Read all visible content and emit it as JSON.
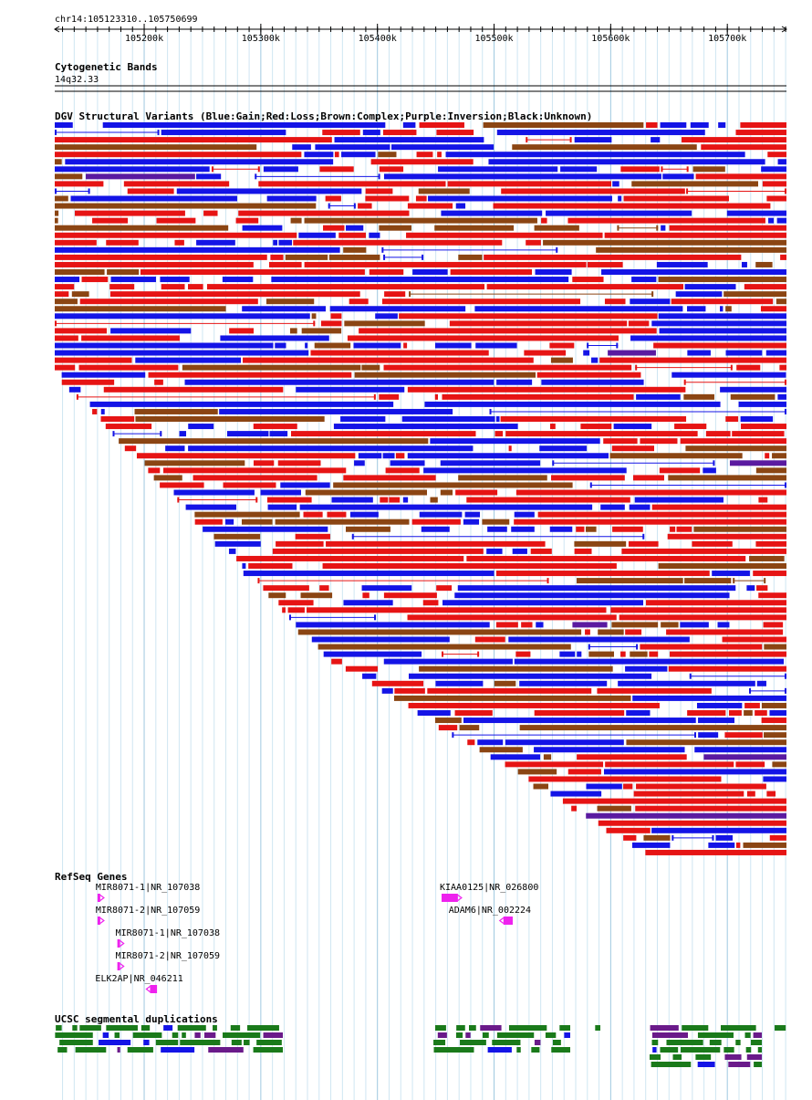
{
  "region": "chr14:105123310..105750699",
  "coords": {
    "start": 105123310,
    "end": 105750699
  },
  "ruler": {
    "ticks": [
      {
        "pos": 105200000,
        "label": "105200k"
      },
      {
        "pos": 105300000,
        "label": "105300k"
      },
      {
        "pos": 105400000,
        "label": "105400k"
      },
      {
        "pos": 105500000,
        "label": "105500k"
      },
      {
        "pos": 105600000,
        "label": "105600k"
      },
      {
        "pos": 105700000,
        "label": "105700k"
      }
    ]
  },
  "cytoband": {
    "title": "Cytogenetic Bands",
    "band": "14q32.33"
  },
  "dgv": {
    "title": "DGV Structural Variants (Blue:Gain;Red:Loss;Brown:Complex;Purple:Inversion;Black:Unknown)",
    "colors": {
      "gain": "#1414e6",
      "loss": "#e61414",
      "complex": "#8b4513",
      "inversion": "#5a1aa0",
      "unknown": "#000000"
    }
  },
  "refseq": {
    "title": "RefSeq Genes",
    "genes": [
      {
        "label": "MIR8071-1|NR_107038",
        "start": 105160000,
        "end": 105161000,
        "strand": "+"
      },
      {
        "label": "MIR8071-2|NR_107059",
        "start": 105160000,
        "end": 105161000,
        "strand": "+"
      },
      {
        "label": "MIR8071-1|NR_107038",
        "start": 105177000,
        "end": 105178000,
        "strand": "+"
      },
      {
        "label": "MIR8071-2|NR_107059",
        "start": 105177000,
        "end": 105178000,
        "strand": "+"
      },
      {
        "label": "ELK2AP|NR_046211",
        "start": 105205000,
        "end": 105211000,
        "strand": "-"
      },
      {
        "label": "KIAA0125|NR_026800",
        "start": 105455000,
        "end": 105469000,
        "strand": "+"
      },
      {
        "label": "ADAM6|NR_002224",
        "start": 105508000,
        "end": 105516000,
        "strand": "-"
      }
    ]
  },
  "segdup": {
    "title": "UCSC segmental duplications",
    "colors": {
      "green": "#1a7a1a",
      "purple": "#6a1a8a",
      "blue": "#1414e6"
    }
  }
}
